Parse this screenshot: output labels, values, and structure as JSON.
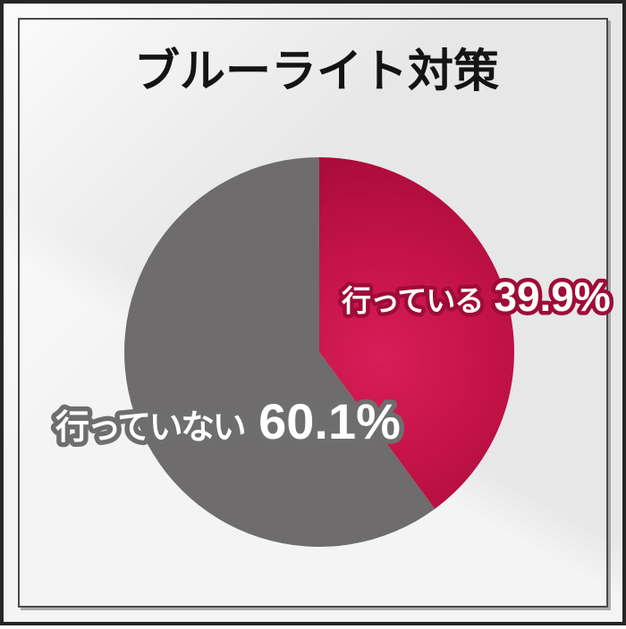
{
  "title": {
    "text": "ブルーライト対策",
    "color": "#141414"
  },
  "frame": {
    "outer_border_color": "#262626",
    "inner_border_color": "#4a4a4a",
    "background_base": "#e8e8e8"
  },
  "chart_data": {
    "type": "pie",
    "title": "ブルーライト対策",
    "unit": "%",
    "start_angle": "top",
    "direction": "clockwise",
    "categories": [
      "行っている",
      "行っていない"
    ],
    "values": [
      39.9,
      60.1
    ],
    "label_text_color": "#ffffff",
    "slices": [
      {
        "label": "行っている",
        "value": 39.9,
        "pct_text": "39.9%",
        "color": "#c41348",
        "gradient": [
          "#d81d58",
          "#c41348",
          "#a80b3a"
        ],
        "label_outline": "#9e0c38"
      },
      {
        "label": "行っていない",
        "value": 60.1,
        "pct_text": "60.1%",
        "color": "#6e6c6c",
        "label_outline": "#6e6e6e"
      }
    ]
  }
}
